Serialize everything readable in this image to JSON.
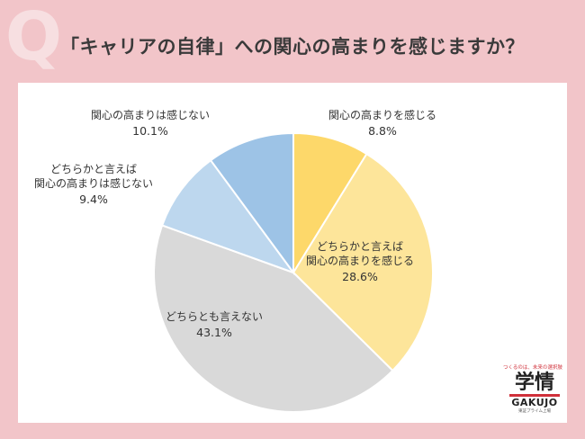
{
  "header": {
    "q_letter": "Q",
    "title": "「キャリアの自律」への関心の高まりを感じますか？"
  },
  "logo": {
    "tagline": "つくるのは、未来の選択肢",
    "main": "学情",
    "en": "GAKUJO",
    "sub": "東証プライム上場"
  },
  "colors": {
    "background": "#f2c5c9",
    "card": "#ffffff",
    "accent_red": "#d0303a"
  },
  "chart_data": {
    "type": "pie",
    "start_angle_deg": 0,
    "direction": "clockwise",
    "slices": [
      {
        "lines": [
          "関心の高まりを感じる"
        ],
        "value": 8.8,
        "value_label": "8.8%",
        "color": "#fdd86a"
      },
      {
        "lines": [
          "どちらかと言えば",
          "関心の高まりを感じる"
        ],
        "value": 28.6,
        "value_label": "28.6%",
        "color": "#fde59a"
      },
      {
        "lines": [
          "どちらとも言えない"
        ],
        "value": 43.1,
        "value_label": "43.1%",
        "color": "#d9d9d9"
      },
      {
        "lines": [
          "どちらかと言えば",
          "関心の高まりは感じない"
        ],
        "value": 9.4,
        "value_label": "9.4%",
        "color": "#bdd7ee"
      },
      {
        "lines": [
          "関心の高まりは感じない"
        ],
        "value": 10.1,
        "value_label": "10.1%",
        "color": "#9dc3e6"
      }
    ]
  }
}
